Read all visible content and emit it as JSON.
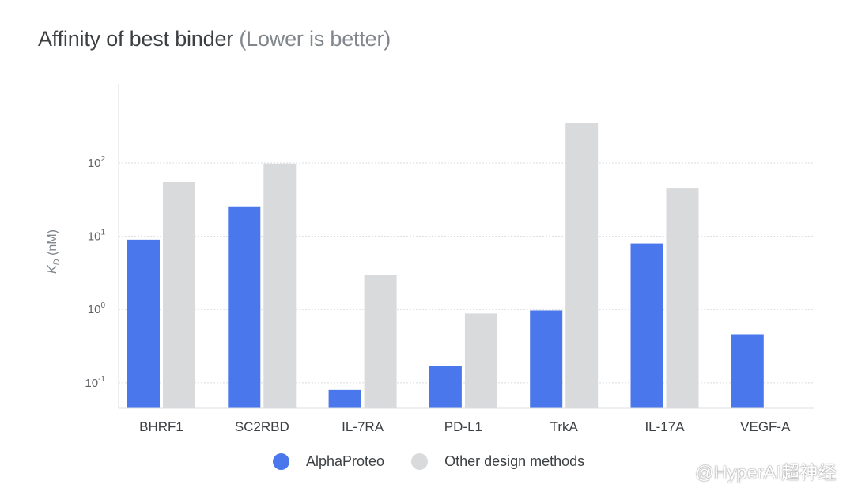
{
  "title": "Affinity of best binder",
  "subtitle": "(Lower is better)",
  "colors": {
    "alphaproteo": "#4a78ec",
    "other": "#d9dadc",
    "grid": "#dadce0",
    "axis": "#dadce0"
  },
  "legend": {
    "series1": "AlphaProteo",
    "series2": "Other design methods"
  },
  "watermark": "@HyperAI超神经",
  "chart_data": {
    "type": "bar",
    "title": "Affinity of best binder",
    "subtitle": "(Lower is better)",
    "xlabel": "",
    "ylabel": "KD (nM)",
    "ylabel_main": "K",
    "ylabel_sub": "D",
    "ylabel_unit": "(nM)",
    "yscale": "log",
    "ylim": [
      0.045,
      1200
    ],
    "yticks": [
      {
        "value": 0.1,
        "base": "10",
        "exp": "-1"
      },
      {
        "value": 1,
        "base": "10",
        "exp": "0"
      },
      {
        "value": 10,
        "base": "10",
        "exp": "1"
      },
      {
        "value": 100,
        "base": "10",
        "exp": "2"
      }
    ],
    "grid": true,
    "legend_position": "bottom",
    "categories": [
      "BHRF1",
      "SC2RBD",
      "IL-7RA",
      "PD-L1",
      "TrkA",
      "IL-17A",
      "VEGF-A"
    ],
    "series": [
      {
        "name": "AlphaProteo",
        "values": [
          9.0,
          25.0,
          0.08,
          0.17,
          0.97,
          8.0,
          0.46
        ]
      },
      {
        "name": "Other design methods",
        "values": [
          55,
          98,
          3.0,
          0.88,
          350,
          45,
          null
        ]
      }
    ]
  }
}
